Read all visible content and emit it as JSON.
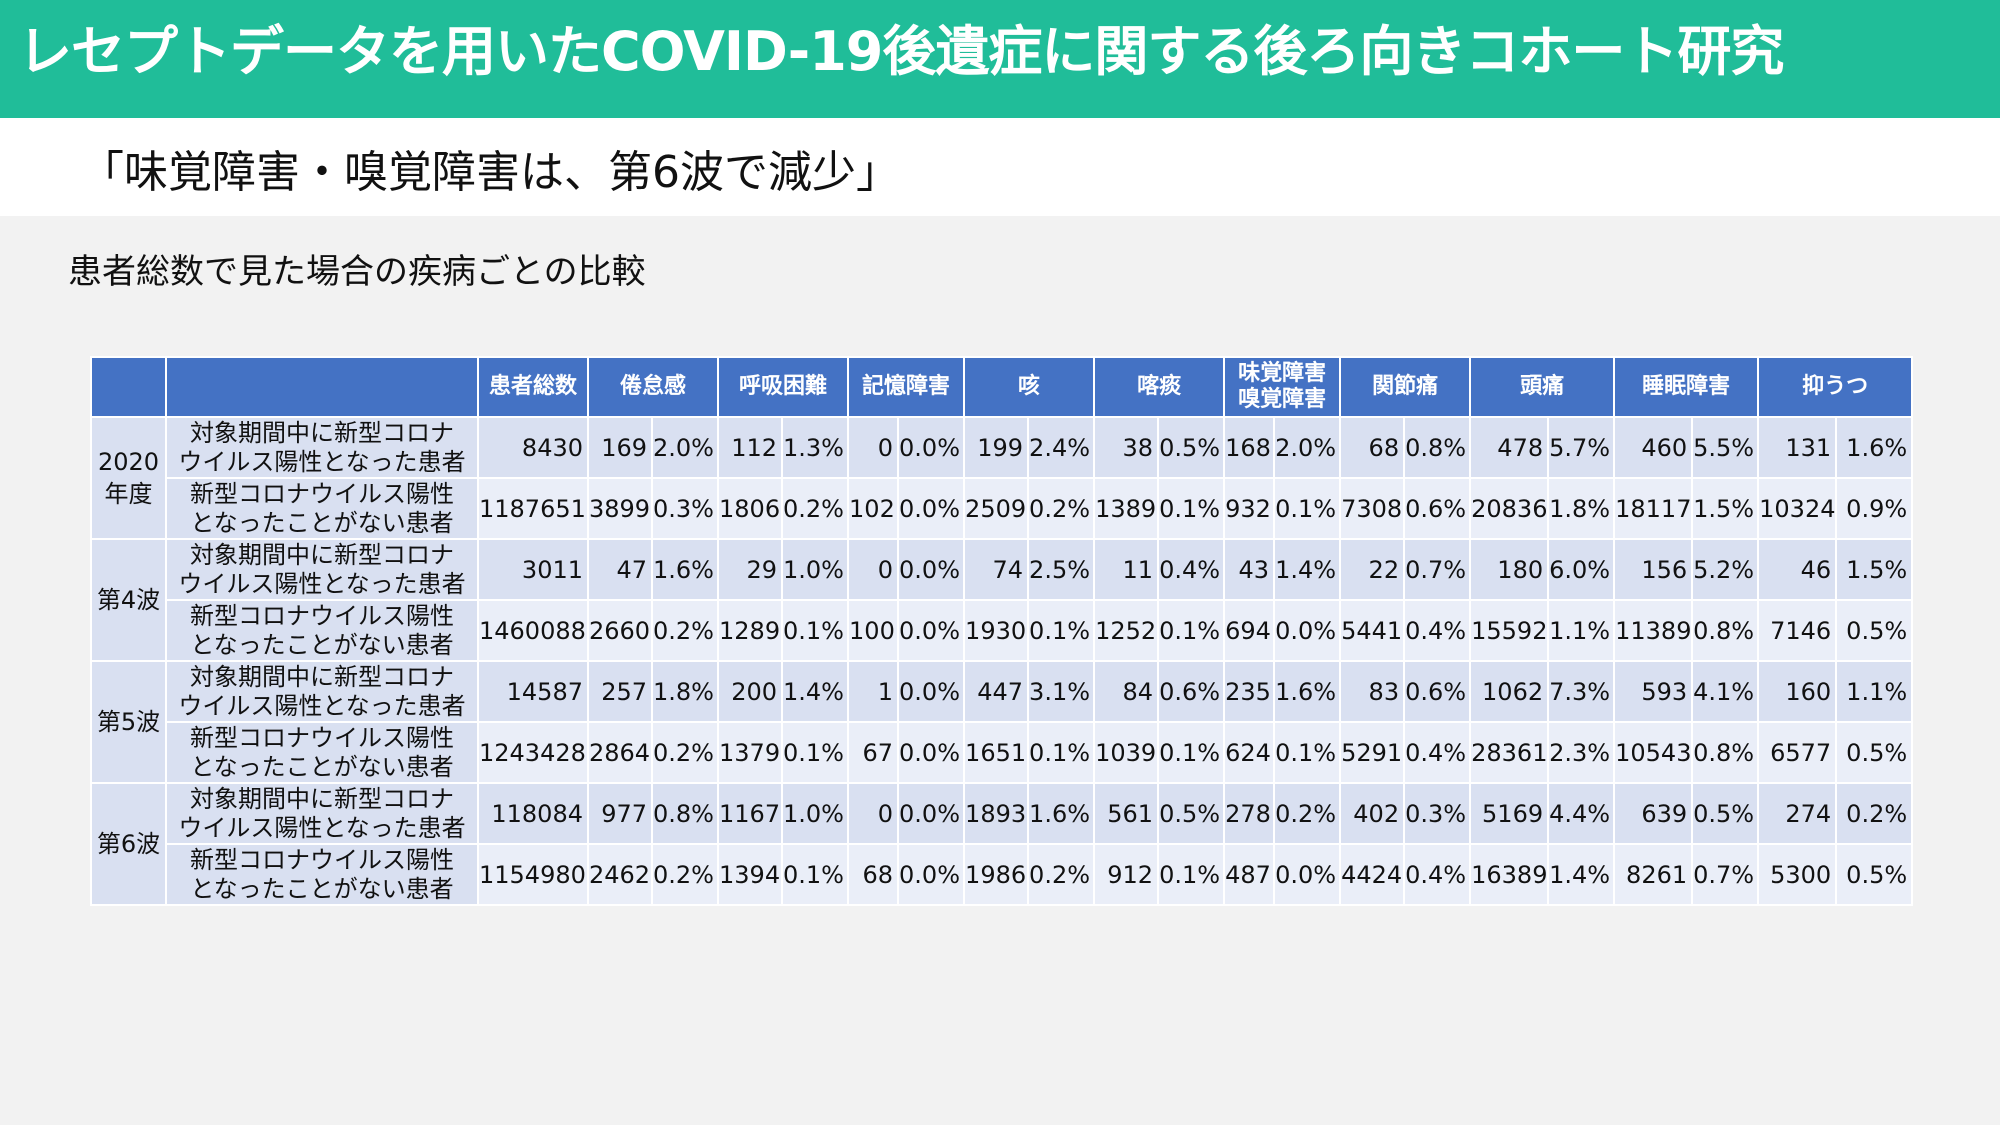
{
  "title": "レセプトデータを用いたCOVID-19後遺症に関する後ろ向きコホート研究",
  "subtitle": "「味覚障害・嗅覚障害は、第6波で減少」",
  "section_title": "患者総数で見た場合の疾病ごとの比較",
  "table": {
    "headers": [
      "",
      "",
      "患者総数",
      "倦怠感",
      "呼吸困難",
      "記憶障害",
      "咳",
      "喀痰",
      "味覚障害\n嗅覚障害",
      "関節痛",
      "頭痛",
      "睡眠障害",
      "抑うつ"
    ],
    "groups": [
      {
        "label": "2020\n年度",
        "rows": [
          {
            "desc": [
              "対象期間中に新型コロナ",
              "ウイルス陽性となった患者"
            ],
            "total": "8430",
            "cells": [
              [
                "169",
                "2.0%"
              ],
              [
                "112",
                "1.3%"
              ],
              [
                "0",
                "0.0%"
              ],
              [
                "199",
                "2.4%"
              ],
              [
                "38",
                "0.5%"
              ],
              [
                "168",
                "2.0%"
              ],
              [
                "68",
                "0.8%"
              ],
              [
                "478",
                "5.7%"
              ],
              [
                "460",
                "5.5%"
              ],
              [
                "131",
                "1.6%"
              ]
            ]
          },
          {
            "desc": [
              "新型コロナウイルス陽性",
              "となったことがない患者"
            ],
            "total": "1187651",
            "cells": [
              [
                "3899",
                "0.3%"
              ],
              [
                "1806",
                "0.2%"
              ],
              [
                "102",
                "0.0%"
              ],
              [
                "2509",
                "0.2%"
              ],
              [
                "1389",
                "0.1%"
              ],
              [
                "932",
                "0.1%"
              ],
              [
                "7308",
                "0.6%"
              ],
              [
                "20836",
                "1.8%"
              ],
              [
                "18117",
                "1.5%"
              ],
              [
                "10324",
                "0.9%"
              ]
            ]
          }
        ]
      },
      {
        "label": "第4波",
        "rows": [
          {
            "desc": [
              "対象期間中に新型コロナ",
              "ウイルス陽性となった患者"
            ],
            "total": "3011",
            "cells": [
              [
                "47",
                "1.6%"
              ],
              [
                "29",
                "1.0%"
              ],
              [
                "0",
                "0.0%"
              ],
              [
                "74",
                "2.5%"
              ],
              [
                "11",
                "0.4%"
              ],
              [
                "43",
                "1.4%"
              ],
              [
                "22",
                "0.7%"
              ],
              [
                "180",
                "6.0%"
              ],
              [
                "156",
                "5.2%"
              ],
              [
                "46",
                "1.5%"
              ]
            ]
          },
          {
            "desc": [
              "新型コロナウイルス陽性",
              "となったことがない患者"
            ],
            "total": "1460088",
            "cells": [
              [
                "2660",
                "0.2%"
              ],
              [
                "1289",
                "0.1%"
              ],
              [
                "100",
                "0.0%"
              ],
              [
                "1930",
                "0.1%"
              ],
              [
                "1252",
                "0.1%"
              ],
              [
                "694",
                "0.0%"
              ],
              [
                "5441",
                "0.4%"
              ],
              [
                "15592",
                "1.1%"
              ],
              [
                "11389",
                "0.8%"
              ],
              [
                "7146",
                "0.5%"
              ]
            ]
          }
        ]
      },
      {
        "label": "第5波",
        "rows": [
          {
            "desc": [
              "対象期間中に新型コロナ",
              "ウイルス陽性となった患者"
            ],
            "total": "14587",
            "cells": [
              [
                "257",
                "1.8%"
              ],
              [
                "200",
                "1.4%"
              ],
              [
                "1",
                "0.0%"
              ],
              [
                "447",
                "3.1%"
              ],
              [
                "84",
                "0.6%"
              ],
              [
                "235",
                "1.6%"
              ],
              [
                "83",
                "0.6%"
              ],
              [
                "1062",
                "7.3%"
              ],
              [
                "593",
                "4.1%"
              ],
              [
                "160",
                "1.1%"
              ]
            ]
          },
          {
            "desc": [
              "新型コロナウイルス陽性",
              "となったことがない患者"
            ],
            "total": "1243428",
            "cells": [
              [
                "2864",
                "0.2%"
              ],
              [
                "1379",
                "0.1%"
              ],
              [
                "67",
                "0.0%"
              ],
              [
                "1651",
                "0.1%"
              ],
              [
                "1039",
                "0.1%"
              ],
              [
                "624",
                "0.1%"
              ],
              [
                "5291",
                "0.4%"
              ],
              [
                "28361",
                "2.3%"
              ],
              [
                "10543",
                "0.8%"
              ],
              [
                "6577",
                "0.5%"
              ]
            ]
          }
        ]
      },
      {
        "label": "第6波",
        "rows": [
          {
            "desc": [
              "対象期間中に新型コロナ",
              "ウイルス陽性となった患者"
            ],
            "total": "118084",
            "cells": [
              [
                "977",
                "0.8%"
              ],
              [
                "1167",
                "1.0%"
              ],
              [
                "0",
                "0.0%"
              ],
              [
                "1893",
                "1.6%"
              ],
              [
                "561",
                "0.5%"
              ],
              [
                "278",
                "0.2%"
              ],
              [
                "402",
                "0.3%"
              ],
              [
                "5169",
                "4.4%"
              ],
              [
                "639",
                "0.5%"
              ],
              [
                "274",
                "0.2%"
              ]
            ]
          },
          {
            "desc": [
              "新型コロナウイルス陽性",
              "となったことがない患者"
            ],
            "total": "1154980",
            "cells": [
              [
                "2462",
                "0.2%"
              ],
              [
                "1394",
                "0.1%"
              ],
              [
                "68",
                "0.0%"
              ],
              [
                "1986",
                "0.2%"
              ],
              [
                "912",
                "0.1%"
              ],
              [
                "487",
                "0.0%"
              ],
              [
                "4424",
                "0.4%"
              ],
              [
                "16389",
                "1.4%"
              ],
              [
                "8261",
                "0.7%"
              ],
              [
                "5300",
                "0.5%"
              ]
            ]
          }
        ]
      }
    ]
  }
}
